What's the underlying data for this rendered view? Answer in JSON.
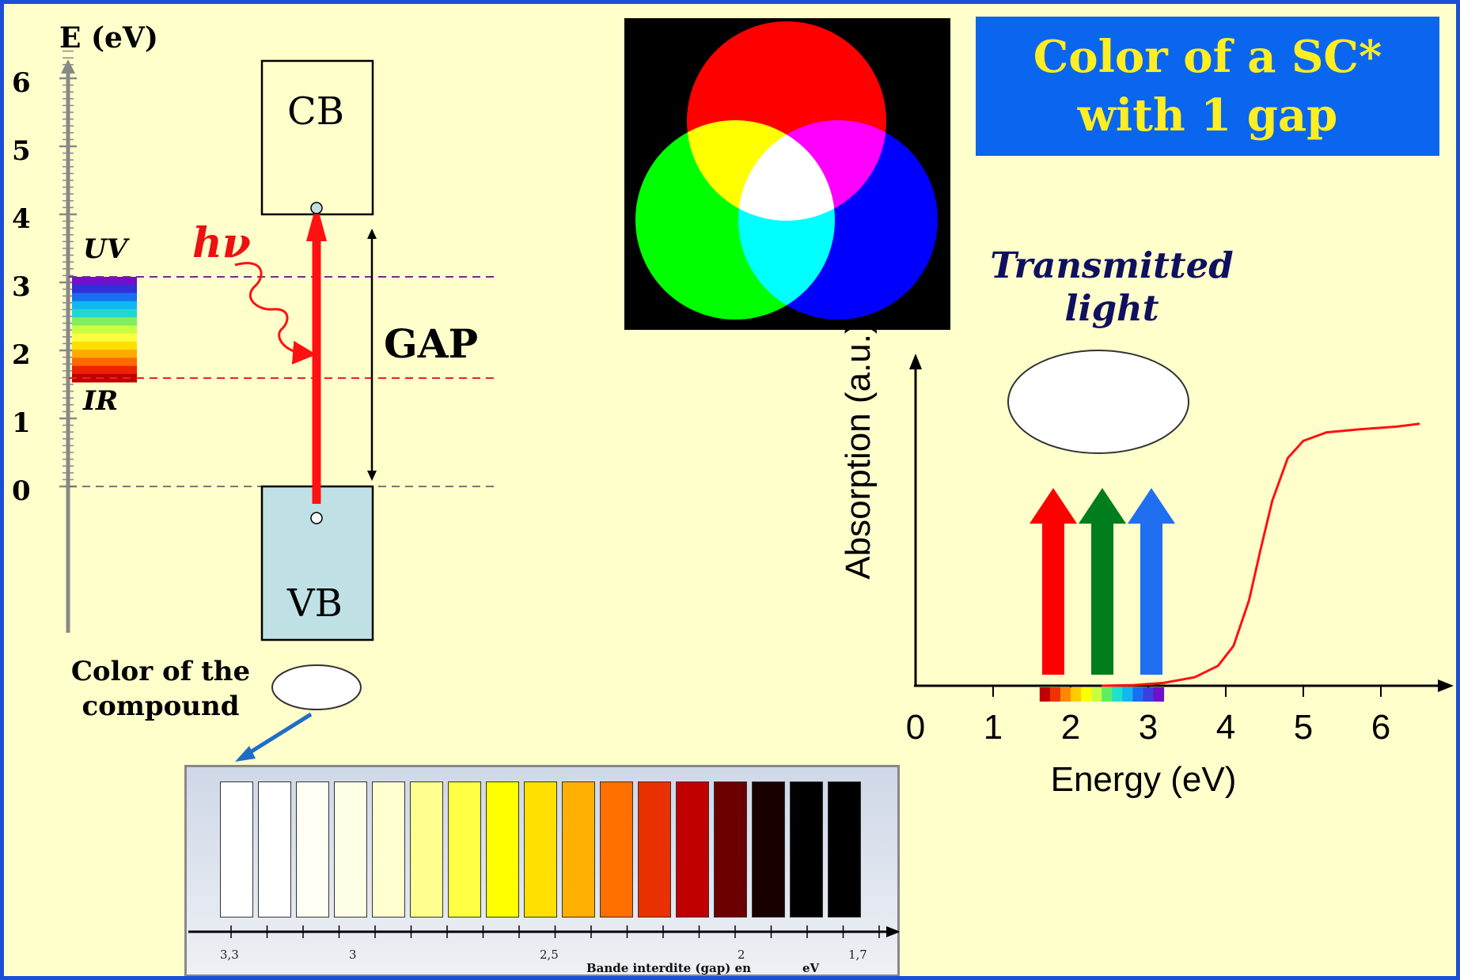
{
  "title": {
    "line1": "Color of a SC*",
    "line2": "with 1 gap"
  },
  "energy_axis": {
    "title": "E (eV)",
    "ticks": [
      "6",
      "5",
      "4",
      "3",
      "2",
      "1",
      "0"
    ]
  },
  "bands": {
    "cb": "CB",
    "vb": "VB",
    "gap": "GAP",
    "photon": "hν"
  },
  "spectrum_labels": {
    "uv": "UV",
    "ir": "IR"
  },
  "compound_label": {
    "line1": "Color of the",
    "line2": "compound"
  },
  "transmitted_label": {
    "line1": "Transmitted",
    "line2": "light"
  },
  "colors": {
    "slide_bg": "#ffffcc",
    "frame": "#1a4fd6",
    "title_bg": "#0a66ee",
    "title_text": "#ffee22",
    "photon_arrow": "#ff1111",
    "vb_fill": "#bfe1e6",
    "arrow_red": "#ff0000",
    "arrow_green": "#007d1c",
    "arrow_blue": "#1f6ff0"
  },
  "swatch_chart": {
    "tick_labels": [
      "3,3",
      "3",
      "2,5",
      "2",
      "1,7"
    ],
    "caption": "Bande interdite (gap) en",
    "caption_unit": "eV",
    "swatch_colors": [
      "#ffffff",
      "#ffffff",
      "#fffff4",
      "#ffffe6",
      "#ffffd0",
      "#ffff90",
      "#ffff44",
      "#ffff00",
      "#ffe000",
      "#ffb000",
      "#ff7000",
      "#e83000",
      "#c00000",
      "#6a0000",
      "#180000",
      "#000000",
      "#000000"
    ]
  },
  "chart_data": {
    "type": "line",
    "xlabel": "Energy (eV)",
    "ylabel": "Absorption (a.u.)",
    "x_ticks": [
      "0",
      "1",
      "2",
      "3",
      "4",
      "5",
      "6"
    ],
    "xlim": [
      0,
      6.5
    ],
    "grid": false,
    "series": [
      {
        "x": [
          2.4,
          2.8,
          3.2,
          3.6,
          3.9,
          4.1,
          4.3,
          4.45,
          4.6,
          4.8,
          5.0,
          5.3,
          5.7,
          6.2,
          6.5
        ],
        "y": [
          0.0,
          0.002,
          0.01,
          0.03,
          0.07,
          0.14,
          0.3,
          0.48,
          0.65,
          0.8,
          0.86,
          0.89,
          0.9,
          0.91,
          0.92
        ]
      }
    ]
  }
}
